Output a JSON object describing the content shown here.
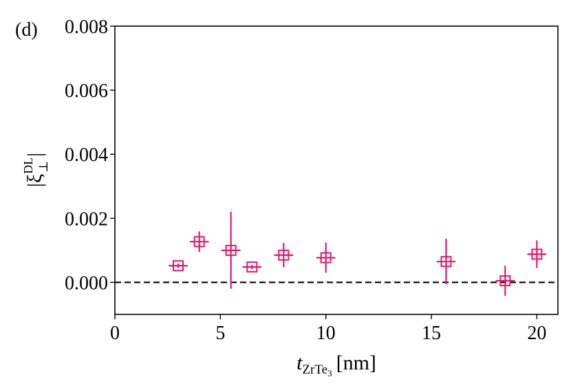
{
  "panel_label": "(d)",
  "chart_data": {
    "type": "scatter",
    "xlabel": {
      "main": "t",
      "subscript": "ZrTe",
      "sub_subscript": "3",
      "unit": "[nm]"
    },
    "ylabel": {
      "main": "|ξ",
      "sup": "DL",
      "sub": "⊥",
      "close": "|"
    },
    "xlim": [
      0,
      21
    ],
    "ylim": [
      -0.001,
      0.008
    ],
    "xticks": [
      0,
      5,
      10,
      15,
      20
    ],
    "xtick_labels": [
      "0",
      "5",
      "10",
      "15",
      "20"
    ],
    "yticks": [
      0.0,
      0.002,
      0.004,
      0.006,
      0.008
    ],
    "ytick_labels": [
      "0.000",
      "0.002",
      "0.004",
      "0.006",
      "0.008"
    ],
    "grid": false,
    "marker": "square-plus",
    "color": "#e3176b",
    "reference_line": {
      "y": 0.0,
      "style": "dashed",
      "color": "#000000"
    },
    "series": [
      {
        "points": [
          {
            "x": 3.0,
            "y": 0.00052,
            "xerr": 0.45,
            "yerr": 7e-05
          },
          {
            "x": 4.0,
            "y": 0.00127,
            "xerr": 0.45,
            "yerr": 0.00032
          },
          {
            "x": 5.5,
            "y": 0.001,
            "xerr": 0.45,
            "yerr": 0.0012
          },
          {
            "x": 6.5,
            "y": 0.00048,
            "xerr": 0.45,
            "yerr": 7e-05
          },
          {
            "x": 8.0,
            "y": 0.00085,
            "xerr": 0.45,
            "yerr": 0.00038
          },
          {
            "x": 10.0,
            "y": 0.00077,
            "xerr": 0.45,
            "yerr": 0.00047
          },
          {
            "x": 15.7,
            "y": 0.00065,
            "xerr": 0.45,
            "yerr": 0.00071
          },
          {
            "x": 18.5,
            "y": 5e-05,
            "xerr": 0.45,
            "yerr": 0.00047
          },
          {
            "x": 20.0,
            "y": 0.00088,
            "xerr": 0.45,
            "yerr": 0.00043
          }
        ]
      }
    ]
  }
}
